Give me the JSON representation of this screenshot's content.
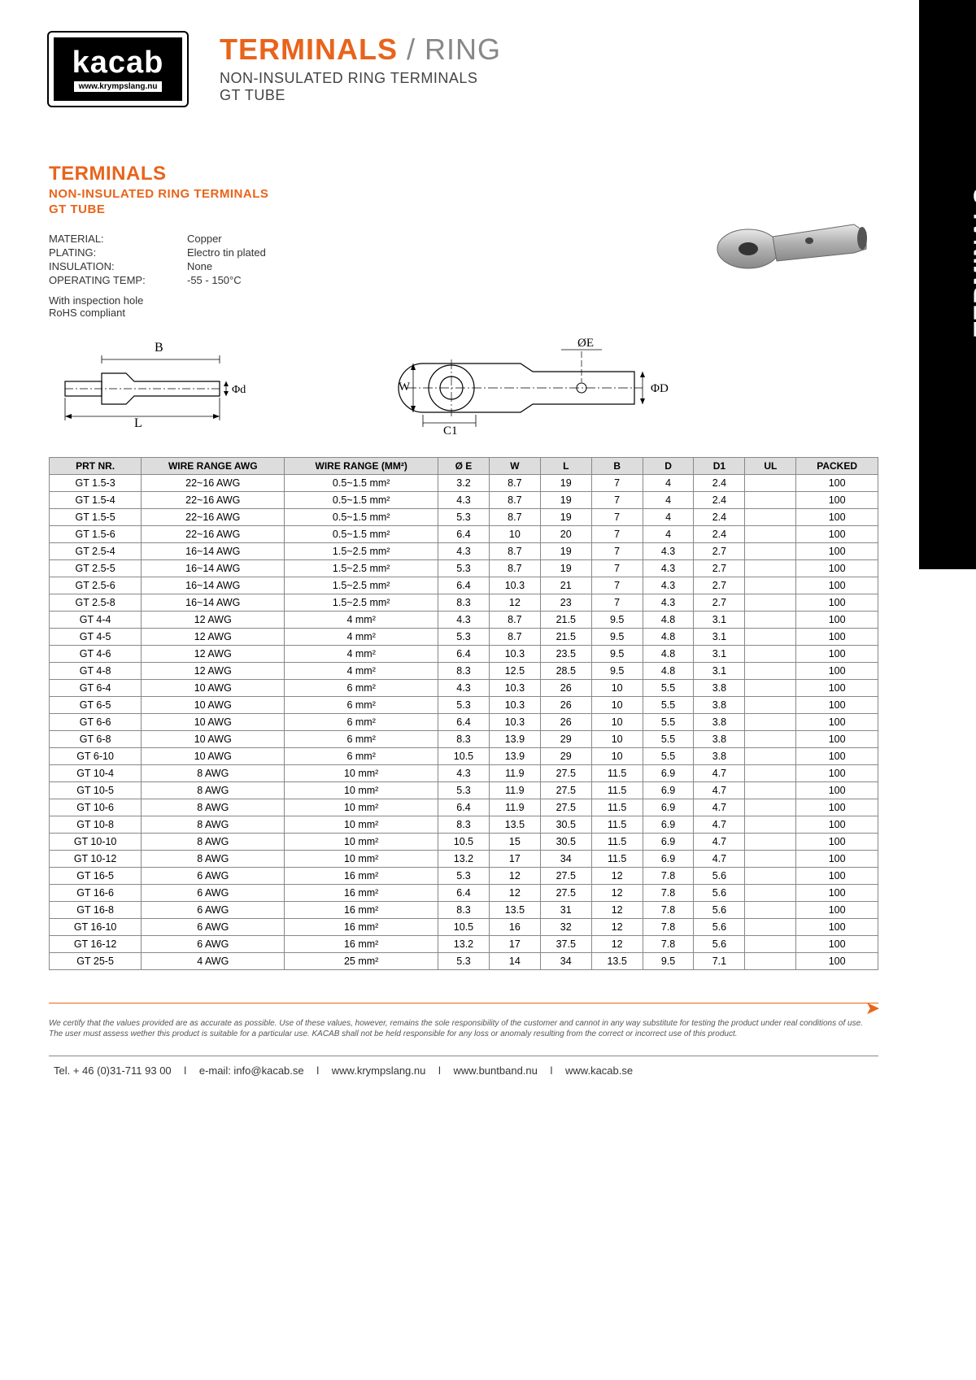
{
  "sideTab": "TERMINALS",
  "logo": {
    "main": "kacab",
    "sub": "www.krympslang.nu"
  },
  "header": {
    "titleBold": "TERMINALS",
    "titleRest": " / RING",
    "subtitle1": "NON-INSULATED RING TERMINALS",
    "subtitle2": "GT TUBE"
  },
  "section": {
    "head": "TERMINALS",
    "sub1": "NON-INSULATED RING TERMINALS",
    "sub2": "GT TUBE"
  },
  "specs": [
    {
      "label": "MATERIAL:",
      "value": "Copper"
    },
    {
      "label": "PLATING:",
      "value": "Electro tin plated"
    },
    {
      "label": "INSULATION:",
      "value": "None"
    },
    {
      "label": "OPERATING TEMP:",
      "value": "-55 - 150°C"
    }
  ],
  "notes": [
    "With inspection hole",
    "RoHS compliant"
  ],
  "diagramLabels": {
    "B": "B",
    "L": "L",
    "phid": "Φd",
    "phiE": "ΦE",
    "W": "W",
    "phiD": "ΦD",
    "C1": "C1"
  },
  "table": {
    "columns": [
      "PRT NR.",
      "WIRE RANGE AWG",
      "WIRE RANGE (MM²)",
      "Ø E",
      "W",
      "L",
      "B",
      "D",
      "D1",
      "UL",
      "PACKED"
    ],
    "colWidths": [
      "90px",
      "140px",
      "150px",
      "50px",
      "50px",
      "50px",
      "50px",
      "50px",
      "50px",
      "50px",
      "80px"
    ],
    "rows": [
      [
        "GT 1.5-3",
        "22~16 AWG",
        "0.5~1.5 mm²",
        "3.2",
        "8.7",
        "19",
        "7",
        "4",
        "2.4",
        "",
        "100"
      ],
      [
        "GT 1.5-4",
        "22~16 AWG",
        "0.5~1.5 mm²",
        "4.3",
        "8.7",
        "19",
        "7",
        "4",
        "2.4",
        "",
        "100"
      ],
      [
        "GT 1.5-5",
        "22~16 AWG",
        "0.5~1.5 mm²",
        "5.3",
        "8.7",
        "19",
        "7",
        "4",
        "2.4",
        "",
        "100"
      ],
      [
        "GT 1.5-6",
        "22~16 AWG",
        "0.5~1.5 mm²",
        "6.4",
        "10",
        "20",
        "7",
        "4",
        "2.4",
        "",
        "100"
      ],
      [
        "GT 2.5-4",
        "16~14 AWG",
        "1.5~2.5 mm²",
        "4.3",
        "8.7",
        "19",
        "7",
        "4.3",
        "2.7",
        "",
        "100"
      ],
      [
        "GT 2.5-5",
        "16~14 AWG",
        "1.5~2.5 mm²",
        "5.3",
        "8.7",
        "19",
        "7",
        "4.3",
        "2.7",
        "",
        "100"
      ],
      [
        "GT 2.5-6",
        "16~14 AWG",
        "1.5~2.5 mm²",
        "6.4",
        "10.3",
        "21",
        "7",
        "4.3",
        "2.7",
        "",
        "100"
      ],
      [
        "GT 2.5-8",
        "16~14 AWG",
        "1.5~2.5 mm²",
        "8.3",
        "12",
        "23",
        "7",
        "4.3",
        "2.7",
        "",
        "100"
      ],
      [
        "GT 4-4",
        "12 AWG",
        "4 mm²",
        "4.3",
        "8.7",
        "21.5",
        "9.5",
        "4.8",
        "3.1",
        "",
        "100"
      ],
      [
        "GT 4-5",
        "12 AWG",
        "4 mm²",
        "5.3",
        "8.7",
        "21.5",
        "9.5",
        "4.8",
        "3.1",
        "",
        "100"
      ],
      [
        "GT 4-6",
        "12 AWG",
        "4 mm²",
        "6.4",
        "10.3",
        "23.5",
        "9.5",
        "4.8",
        "3.1",
        "",
        "100"
      ],
      [
        "GT 4-8",
        "12 AWG",
        "4 mm²",
        "8.3",
        "12.5",
        "28.5",
        "9.5",
        "4.8",
        "3.1",
        "",
        "100"
      ],
      [
        "GT 6-4",
        "10 AWG",
        "6 mm²",
        "4.3",
        "10.3",
        "26",
        "10",
        "5.5",
        "3.8",
        "",
        "100"
      ],
      [
        "GT 6-5",
        "10 AWG",
        "6 mm²",
        "5.3",
        "10.3",
        "26",
        "10",
        "5.5",
        "3.8",
        "",
        "100"
      ],
      [
        "GT 6-6",
        "10 AWG",
        "6 mm²",
        "6.4",
        "10.3",
        "26",
        "10",
        "5.5",
        "3.8",
        "",
        "100"
      ],
      [
        "GT 6-8",
        "10 AWG",
        "6 mm²",
        "8.3",
        "13.9",
        "29",
        "10",
        "5.5",
        "3.8",
        "",
        "100"
      ],
      [
        "GT 6-10",
        "10 AWG",
        "6 mm²",
        "10.5",
        "13.9",
        "29",
        "10",
        "5.5",
        "3.8",
        "",
        "100"
      ],
      [
        "GT 10-4",
        "8 AWG",
        "10 mm²",
        "4.3",
        "11.9",
        "27.5",
        "11.5",
        "6.9",
        "4.7",
        "",
        "100"
      ],
      [
        "GT 10-5",
        "8 AWG",
        "10 mm²",
        "5.3",
        "11.9",
        "27.5",
        "11.5",
        "6.9",
        "4.7",
        "",
        "100"
      ],
      [
        "GT 10-6",
        "8 AWG",
        "10 mm²",
        "6.4",
        "11.9",
        "27.5",
        "11.5",
        "6.9",
        "4.7",
        "",
        "100"
      ],
      [
        "GT 10-8",
        "8 AWG",
        "10 mm²",
        "8.3",
        "13.5",
        "30.5",
        "11.5",
        "6.9",
        "4.7",
        "",
        "100"
      ],
      [
        "GT 10-10",
        "8 AWG",
        "10 mm²",
        "10.5",
        "15",
        "30.5",
        "11.5",
        "6.9",
        "4.7",
        "",
        "100"
      ],
      [
        "GT 10-12",
        "8 AWG",
        "10 mm²",
        "13.2",
        "17",
        "34",
        "11.5",
        "6.9",
        "4.7",
        "",
        "100"
      ],
      [
        "GT 16-5",
        "6 AWG",
        "16 mm²",
        "5.3",
        "12",
        "27.5",
        "12",
        "7.8",
        "5.6",
        "",
        "100"
      ],
      [
        "GT 16-6",
        "6 AWG",
        "16 mm²",
        "6.4",
        "12",
        "27.5",
        "12",
        "7.8",
        "5.6",
        "",
        "100"
      ],
      [
        "GT 16-8",
        "6 AWG",
        "16 mm²",
        "8.3",
        "13.5",
        "31",
        "12",
        "7.8",
        "5.6",
        "",
        "100"
      ],
      [
        "GT 16-10",
        "6 AWG",
        "16 mm²",
        "10.5",
        "16",
        "32",
        "12",
        "7.8",
        "5.6",
        "",
        "100"
      ],
      [
        "GT 16-12",
        "6 AWG",
        "16 mm²",
        "13.2",
        "17",
        "37.5",
        "12",
        "7.8",
        "5.6",
        "",
        "100"
      ],
      [
        "GT 25-5",
        "4 AWG",
        "25 mm²",
        "5.3",
        "14",
        "34",
        "13.5",
        "9.5",
        "7.1",
        "",
        "100"
      ]
    ]
  },
  "disclaimer": "We certify that the values provided are as accurate as possible. Use of these values, however, remains the sole responsibility of the customer and cannot in any way substitute for testing the product under real conditions of use. The user must assess wether this product is suitable for a particular use. KACAB shall not be held responsible for any loss or anomaly resulting from the correct or incorrect use of this product.",
  "footer": {
    "tel": "Tel. + 46 (0)31-711 93 00",
    "email": "e-mail: info@kacab.se",
    "sites": [
      "www.krympslang.nu",
      "www.buntband.nu",
      "www.kacab.se"
    ]
  },
  "colors": {
    "orange": "#e8641b",
    "headerBg": "#ddd",
    "border": "#888"
  }
}
